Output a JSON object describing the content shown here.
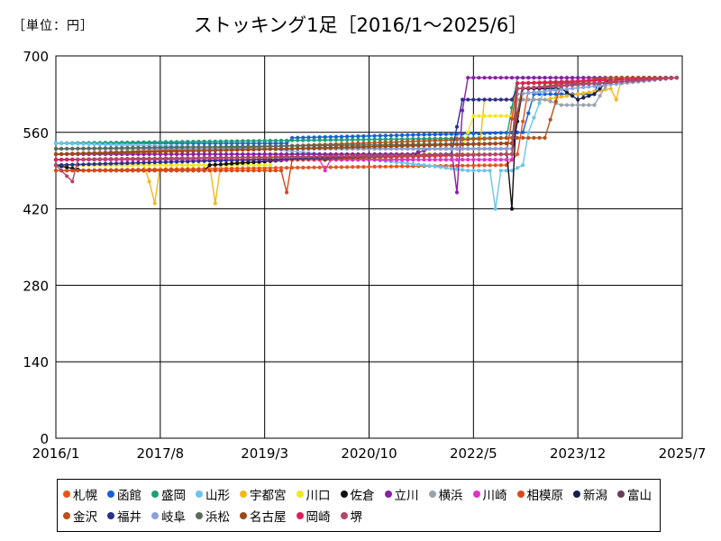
{
  "unit_label": "［単位：円］",
  "chart_data": {
    "type": "line",
    "title": "ストッキング1足［2016/1～2025/6］",
    "xlabel": "",
    "ylabel": "",
    "ylim": [
      0,
      700
    ],
    "yticks": [
      0,
      140,
      280,
      420,
      560,
      700
    ],
    "xlim": [
      "2016-01",
      "2025-07"
    ],
    "xticks": [
      "2016/1",
      "2017/8",
      "2019/3",
      "2020/10",
      "2022/5",
      "2023/12",
      "2025/7"
    ],
    "grid": true,
    "legend_position": "bottom",
    "series": [
      {
        "name": "札幌",
        "color": "#e8541c",
        "points": [
          [
            "2016-01",
            490
          ],
          [
            "2022-11",
            500
          ],
          [
            "2023-01",
            520
          ],
          [
            "2023-03",
            640
          ],
          [
            "2024-05",
            660
          ],
          [
            "2025-06",
            660
          ]
        ]
      },
      {
        "name": "函館",
        "color": "#1560d8",
        "points": [
          [
            "2016-01",
            540
          ],
          [
            "2019-07",
            540
          ],
          [
            "2019-08",
            550
          ],
          [
            "2023-02",
            560
          ],
          [
            "2023-04",
            630
          ],
          [
            "2024-03",
            630
          ],
          [
            "2024-04",
            660
          ],
          [
            "2025-06",
            660
          ]
        ]
      },
      {
        "name": "盛岡",
        "color": "#1e9e78",
        "points": [
          [
            "2016-01",
            540
          ],
          [
            "2022-11",
            550
          ],
          [
            "2023-01",
            660
          ],
          [
            "2025-06",
            660
          ]
        ]
      },
      {
        "name": "山形",
        "color": "#6cc3ee",
        "points": [
          [
            "2016-01",
            540
          ],
          [
            "2019-04",
            530
          ],
          [
            "2021-08",
            500
          ],
          [
            "2022-04",
            490
          ],
          [
            "2022-08",
            490
          ],
          [
            "2022-09",
            420
          ],
          [
            "2022-10",
            490
          ],
          [
            "2022-12",
            490
          ],
          [
            "2023-02",
            500
          ],
          [
            "2023-03",
            560
          ],
          [
            "2023-06",
            640
          ],
          [
            "2024-06",
            660
          ],
          [
            "2025-06",
            660
          ]
        ]
      },
      {
        "name": "宇都宮",
        "color": "#f2b81c",
        "points": [
          [
            "2016-01",
            500
          ],
          [
            "2017-05",
            500
          ],
          [
            "2017-06",
            470
          ],
          [
            "2017-07",
            430
          ],
          [
            "2017-08",
            500
          ],
          [
            "2018-05",
            500
          ],
          [
            "2018-06",
            430
          ],
          [
            "2018-07",
            500
          ],
          [
            "2019-08",
            520
          ],
          [
            "2022-06",
            520
          ],
          [
            "2022-07",
            620
          ],
          [
            "2023-06",
            620
          ],
          [
            "2024-06",
            640
          ],
          [
            "2024-07",
            620
          ],
          [
            "2024-08",
            660
          ],
          [
            "2025-06",
            660
          ]
        ]
      },
      {
        "name": "川口",
        "color": "#f2e81e",
        "points": [
          [
            "2016-01",
            500
          ],
          [
            "2019-04",
            500
          ],
          [
            "2019-05",
            530
          ],
          [
            "2022-03",
            530
          ],
          [
            "2022-05",
            590
          ],
          [
            "2022-12",
            590
          ],
          [
            "2023-01",
            650
          ],
          [
            "2024-06",
            650
          ],
          [
            "2024-08",
            660
          ],
          [
            "2025-06",
            660
          ]
        ]
      },
      {
        "name": "佐倉",
        "color": "#111111",
        "points": [
          [
            "2016-01",
            500
          ],
          [
            "2016-06",
            490
          ],
          [
            "2018-04",
            490
          ],
          [
            "2018-05",
            500
          ],
          [
            "2019-08",
            510
          ],
          [
            "2021-06",
            510
          ],
          [
            "2021-07",
            530
          ],
          [
            "2022-11",
            530
          ],
          [
            "2022-12",
            420
          ],
          [
            "2023-01",
            640
          ],
          [
            "2025-06",
            660
          ]
        ]
      },
      {
        "name": "立川",
        "color": "#8a1fa8",
        "points": [
          [
            "2016-01",
            520
          ],
          [
            "2021-06",
            520
          ],
          [
            "2021-09",
            530
          ],
          [
            "2022-01",
            530
          ],
          [
            "2022-02",
            450
          ],
          [
            "2022-03",
            600
          ],
          [
            "2022-04",
            660
          ],
          [
            "2025-06",
            660
          ]
        ]
      },
      {
        "name": "横浜",
        "color": "#9aa3ad",
        "points": [
          [
            "2016-01",
            530
          ],
          [
            "2022-12",
            530
          ],
          [
            "2023-01",
            620
          ],
          [
            "2023-06",
            620
          ],
          [
            "2023-09",
            610
          ],
          [
            "2024-03",
            610
          ],
          [
            "2024-06",
            660
          ],
          [
            "2025-06",
            660
          ]
        ]
      },
      {
        "name": "川崎",
        "color": "#e233c8",
        "points": [
          [
            "2016-01",
            510
          ],
          [
            "2020-01",
            510
          ],
          [
            "2020-02",
            490
          ],
          [
            "2020-03",
            510
          ],
          [
            "2022-12",
            510
          ],
          [
            "2023-01",
            640
          ],
          [
            "2025-06",
            660
          ]
        ]
      },
      {
        "name": "相模原",
        "color": "#d84a18",
        "points": [
          [
            "2016-01",
            490
          ],
          [
            "2019-06",
            490
          ],
          [
            "2019-07",
            450
          ],
          [
            "2019-08",
            510
          ],
          [
            "2022-11",
            520
          ],
          [
            "2023-01",
            650
          ],
          [
            "2024-06",
            650
          ],
          [
            "2024-08",
            660
          ],
          [
            "2025-06",
            660
          ]
        ]
      },
      {
        "name": "新潟",
        "color": "#1a1f4a",
        "points": [
          [
            "2016-01",
            510
          ],
          [
            "2022-12",
            520
          ],
          [
            "2023-02",
            640
          ],
          [
            "2023-09",
            640
          ],
          [
            "2023-12",
            620
          ],
          [
            "2024-03",
            630
          ],
          [
            "2024-06",
            660
          ],
          [
            "2025-06",
            660
          ]
        ]
      },
      {
        "name": "富山",
        "color": "#6b3a5a",
        "points": [
          [
            "2016-01",
            520
          ],
          [
            "2022-12",
            540
          ],
          [
            "2023-02",
            640
          ],
          [
            "2025-06",
            660
          ]
        ]
      },
      {
        "name": "金沢",
        "color": "#b5541c",
        "points": [
          [
            "2016-01",
            520
          ],
          [
            "2022-12",
            550
          ],
          [
            "2023-06",
            550
          ],
          [
            "2023-09",
            650
          ],
          [
            "2024-06",
            660
          ],
          [
            "2025-06",
            660
          ]
        ]
      },
      {
        "name": "福井",
        "color": "#2a2f90",
        "points": [
          [
            "2016-01",
            500
          ],
          [
            "2022-01",
            520
          ],
          [
            "2022-03",
            620
          ],
          [
            "2022-12",
            620
          ],
          [
            "2023-01",
            640
          ],
          [
            "2025-06",
            660
          ]
        ]
      },
      {
        "name": "岐阜",
        "color": "#8aa0d8",
        "points": [
          [
            "2016-01",
            530
          ],
          [
            "2022-12",
            530
          ],
          [
            "2023-01",
            630
          ],
          [
            "2025-06",
            660
          ]
        ]
      },
      {
        "name": "浜松",
        "color": "#5a6b5a",
        "points": [
          [
            "2016-01",
            530
          ],
          [
            "2022-12",
            540
          ],
          [
            "2023-01",
            650
          ],
          [
            "2025-06",
            660
          ]
        ]
      },
      {
        "name": "名古屋",
        "color": "#9a4a14",
        "points": [
          [
            "2016-01",
            520
          ],
          [
            "2019-08",
            530
          ],
          [
            "2022-12",
            540
          ],
          [
            "2023-02",
            650
          ],
          [
            "2025-06",
            660
          ]
        ]
      },
      {
        "name": "岡崎",
        "color": "#e01e5a",
        "points": [
          [
            "2016-01",
            510
          ],
          [
            "2022-12",
            520
          ],
          [
            "2023-01",
            650
          ],
          [
            "2025-06",
            660
          ]
        ]
      },
      {
        "name": "堺",
        "color": "#b04868",
        "points": [
          [
            "2016-01",
            500
          ],
          [
            "2016-04",
            470
          ],
          [
            "2016-05",
            510
          ],
          [
            "2022-12",
            520
          ],
          [
            "2023-01",
            640
          ],
          [
            "2025-06",
            660
          ]
        ]
      }
    ]
  }
}
